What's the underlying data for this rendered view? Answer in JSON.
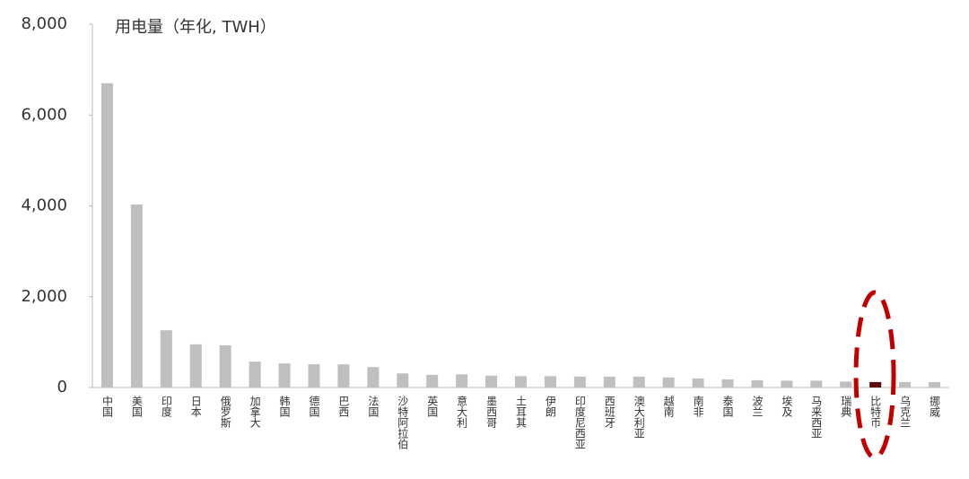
{
  "chart_data": {
    "type": "bar",
    "title": "用电量（年化, TWH）",
    "categories": [
      "中国",
      "美国",
      "印度",
      "日本",
      "俄罗斯",
      "加拿大",
      "韩国",
      "德国",
      "巴西",
      "法国",
      "沙特阿拉伯",
      "英国",
      "意大利",
      "墨西哥",
      "土耳其",
      "伊朗",
      "印度尼西亚",
      "西班牙",
      "澳大利亚",
      "越南",
      "南非",
      "泰国",
      "波兰",
      "埃及",
      "马来西亚",
      "瑞典",
      "比特币",
      "乌克兰",
      "挪威"
    ],
    "values": [
      6700,
      4030,
      1260,
      950,
      930,
      570,
      530,
      510,
      510,
      450,
      310,
      280,
      290,
      260,
      250,
      250,
      240,
      240,
      240,
      220,
      200,
      180,
      160,
      150,
      150,
      130,
      120,
      120,
      120
    ],
    "colors": [
      "#bfbfbf",
      "#bfbfbf",
      "#bfbfbf",
      "#bfbfbf",
      "#bfbfbf",
      "#bfbfbf",
      "#bfbfbf",
      "#bfbfbf",
      "#bfbfbf",
      "#bfbfbf",
      "#bfbfbf",
      "#bfbfbf",
      "#bfbfbf",
      "#bfbfbf",
      "#bfbfbf",
      "#bfbfbf",
      "#bfbfbf",
      "#bfbfbf",
      "#bfbfbf",
      "#bfbfbf",
      "#bfbfbf",
      "#bfbfbf",
      "#bfbfbf",
      "#bfbfbf",
      "#bfbfbf",
      "#bfbfbf",
      "#5c0a0a",
      "#bfbfbf",
      "#bfbfbf"
    ],
    "ylim": [
      0,
      8000
    ],
    "yticks": [
      0,
      {
        "value": 2000,
        "label": "2,000"
      },
      {
        "value": 4000,
        "label": "4,000"
      },
      {
        "value": 6000,
        "label": "6,000"
      },
      {
        "value": 8000,
        "label": "8,000"
      }
    ],
    "grid": false
  }
}
